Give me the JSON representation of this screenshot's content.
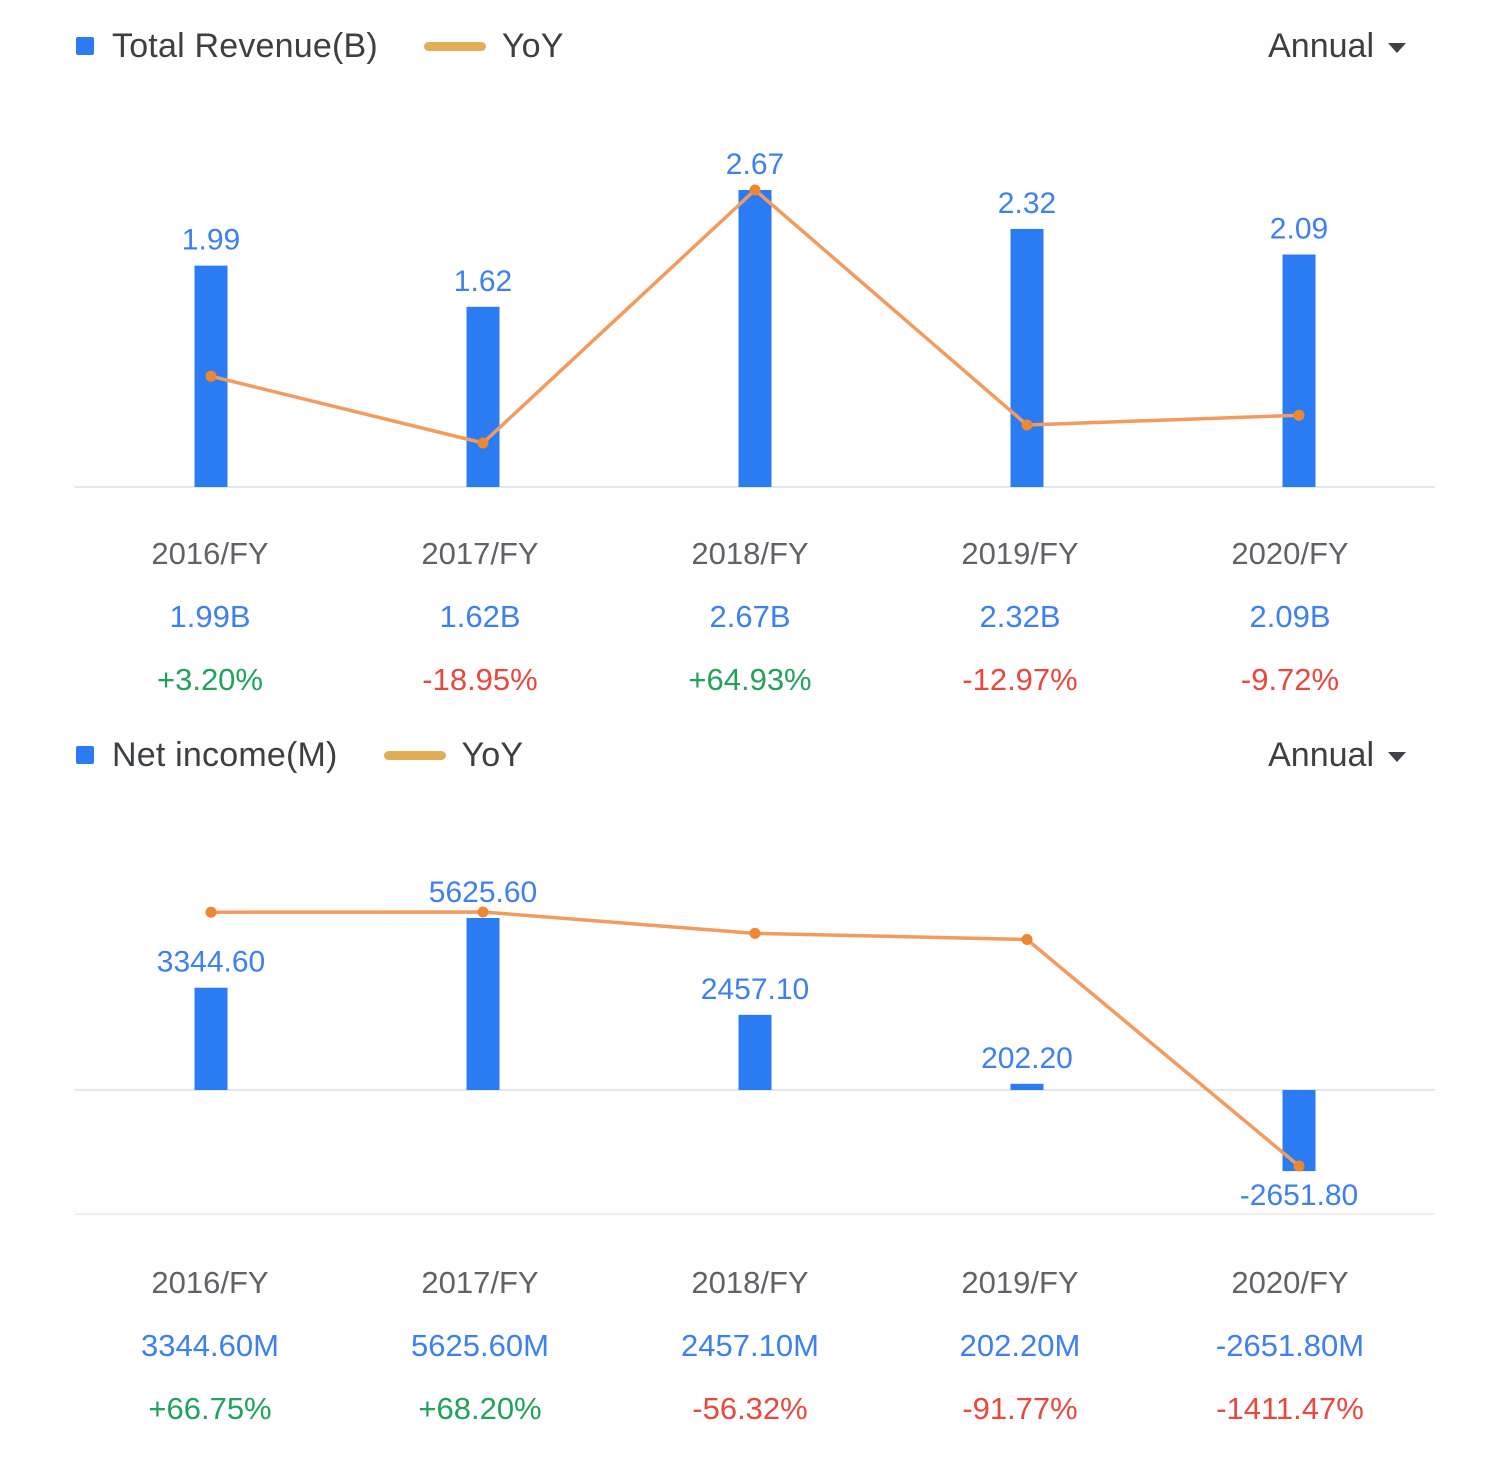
{
  "colors": {
    "bar": "#2b7bf3",
    "bar_label": "#3f80f0",
    "line": "#f29b5f",
    "marker": "#ee8732",
    "legend_dash": "#e2ae55",
    "positive": "#23a25c",
    "negative": "#e8483d",
    "gridline": "#e6e7e8",
    "gridline_faint": "#efefef"
  },
  "chart_data": [
    {
      "type": "bar",
      "title": "Total Revenue(B)",
      "legend": {
        "bar": "Total Revenue(B)",
        "line": "YoY"
      },
      "period_selector": "Annual",
      "categories": [
        "2016/FY",
        "2017/FY",
        "2018/FY",
        "2019/FY",
        "2020/FY"
      ],
      "series": [
        {
          "name": "Total Revenue(B)",
          "type": "bar",
          "unit": "B",
          "values": [
            1.99,
            1.62,
            2.67,
            2.32,
            2.09
          ],
          "labels": [
            "1.99",
            "1.62",
            "2.67",
            "2.32",
            "2.09"
          ]
        },
        {
          "name": "YoY",
          "type": "line",
          "unit": "%",
          "values": [
            3.2,
            -18.95,
            64.93,
            -12.97,
            -9.72
          ]
        }
      ],
      "footer": {
        "values": [
          "1.99B",
          "1.62B",
          "2.67B",
          "2.32B",
          "2.09B"
        ],
        "yoy": [
          "+3.20%",
          "-18.95%",
          "+64.93%",
          "-12.97%",
          "-9.72%"
        ]
      }
    },
    {
      "type": "bar",
      "title": "Net income(M)",
      "legend": {
        "bar": "Net income(M)",
        "line": "YoY"
      },
      "period_selector": "Annual",
      "categories": [
        "2016/FY",
        "2017/FY",
        "2018/FY",
        "2019/FY",
        "2020/FY"
      ],
      "series": [
        {
          "name": "Net income(M)",
          "type": "bar",
          "unit": "M",
          "values": [
            3344.6,
            5625.6,
            2457.1,
            202.2,
            -2651.8
          ],
          "labels": [
            "3344.60",
            "5625.60",
            "2457.10",
            "202.20",
            "-2651.80"
          ]
        },
        {
          "name": "YoY",
          "type": "line",
          "unit": "%",
          "values": [
            66.75,
            68.2,
            -56.32,
            -91.77,
            -1411.47
          ]
        }
      ],
      "footer": {
        "values": [
          "3344.60M",
          "5625.60M",
          "2457.10M",
          "202.20M",
          "-2651.80M"
        ],
        "yoy": [
          "+66.75%",
          "+68.20%",
          "-56.32%",
          "-91.77%",
          "-1411.47%"
        ]
      }
    }
  ]
}
